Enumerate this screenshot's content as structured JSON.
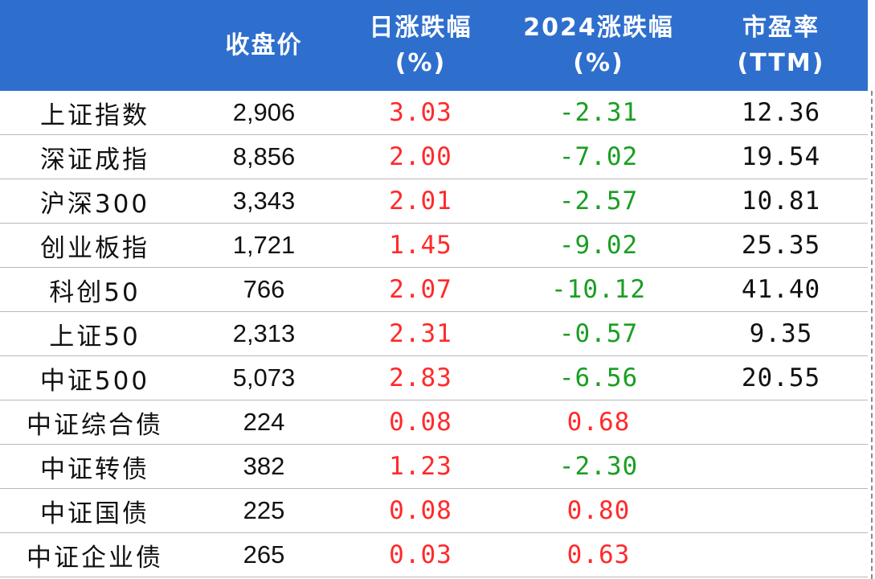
{
  "table": {
    "headers": [
      {
        "line1": "",
        "line2": ""
      },
      {
        "line1": "收盘价",
        "line2": ""
      },
      {
        "line1": "日涨跌幅",
        "line2": "(%)"
      },
      {
        "line1": "2024涨跌幅",
        "line2": "(%)"
      },
      {
        "line1": "市盈率",
        "line2": "(TTM)"
      }
    ],
    "rows": [
      {
        "name": "上证指数",
        "close": "2,906",
        "daily": "3.03",
        "ytd": "-2.31",
        "pe": "12.36"
      },
      {
        "name": "深证成指",
        "close": "8,856",
        "daily": "2.00",
        "ytd": "-7.02",
        "pe": "19.54"
      },
      {
        "name": "沪深300",
        "close": "3,343",
        "daily": "2.01",
        "ytd": "-2.57",
        "pe": "10.81"
      },
      {
        "name": "创业板指",
        "close": "1,721",
        "daily": "1.45",
        "ytd": "-9.02",
        "pe": "25.35"
      },
      {
        "name": "科创50",
        "close": "766",
        "daily": "2.07",
        "ytd": "-10.12",
        "pe": "41.40"
      },
      {
        "name": "上证50",
        "close": "2,313",
        "daily": "2.31",
        "ytd": "-0.57",
        "pe": "9.35"
      },
      {
        "name": "中证500",
        "close": "5,073",
        "daily": "2.83",
        "ytd": "-6.56",
        "pe": "20.55"
      },
      {
        "name": "中证综合债",
        "close": "224",
        "daily": "0.08",
        "ytd": "0.68",
        "pe": ""
      },
      {
        "name": "中证转债",
        "close": "382",
        "daily": "1.23",
        "ytd": "-2.30",
        "pe": ""
      },
      {
        "name": "中证国债",
        "close": "225",
        "daily": "0.08",
        "ytd": "0.80",
        "pe": ""
      },
      {
        "name": "中证企业债",
        "close": "265",
        "daily": "0.03",
        "ytd": "0.63",
        "pe": ""
      }
    ]
  },
  "colors": {
    "header_bg": "#2e6fce",
    "positive": "#ff2a2a",
    "negative": "#1a9e22"
  }
}
